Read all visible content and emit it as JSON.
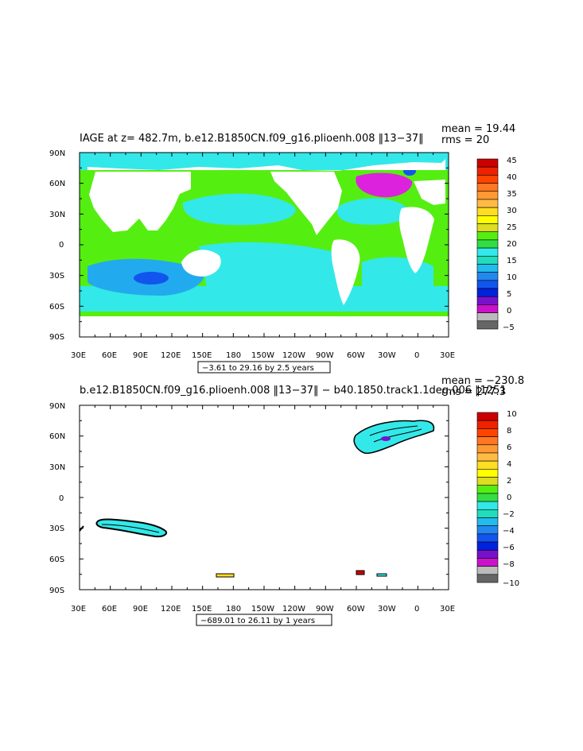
{
  "panels": [
    {
      "title": "IAGE at z= 482.7m, b.e12.B1850CN.f09_g16.plioenh.008 ‖13−37‖",
      "mean_text": "mean = 19.44",
      "rms_text": "rms = 20",
      "range_text": "−3.61 to 29.16 by 2.5 years",
      "lat_ticks": [
        "90N",
        "60N",
        "30N",
        "0",
        "30S",
        "60S",
        "90S"
      ],
      "lon_ticks": [
        "30E",
        "60E",
        "90E",
        "120E",
        "150E",
        "180",
        "150W",
        "120W",
        "90W",
        "60W",
        "30W",
        "0",
        "30E"
      ],
      "colorbar_labels": [
        "45",
        "40",
        "35",
        "30",
        "25",
        "20",
        "15",
        "10",
        "5",
        "0",
        "−5"
      ]
    },
    {
      "title": "b.e12.B1850CN.f09_g16.plioenh.008 ‖13−37‖ − b40.1850.track1.1deg.006 ‖1251",
      "mean_text": "mean = −230.8",
      "rms_text": "rms = 277.3",
      "range_text": "−689.01 to 26.11 by 1 years",
      "lat_ticks": [
        "90N",
        "60N",
        "30N",
        "0",
        "30S",
        "60S",
        "90S"
      ],
      "lon_ticks": [
        "30E",
        "60E",
        "90E",
        "120E",
        "150E",
        "180",
        "150W",
        "120W",
        "90W",
        "60W",
        "30W",
        "0",
        "30E"
      ],
      "colorbar_labels": [
        "10",
        "8",
        "6",
        "4",
        "2",
        "0",
        "−2",
        "−4",
        "−6",
        "−8",
        "−10"
      ]
    }
  ],
  "colors": {
    "ocean_cyan": "#33e8e8",
    "ocean_green": "#55ee11",
    "ocean_light_blue": "#22aaee",
    "ocean_blue": "#1155ee",
    "ocean_magenta": "#dd22dd",
    "land": "#ffffff"
  },
  "colorbar_colors": [
    "#cc0000",
    "#ee2200",
    "#ff4400",
    "#ff7722",
    "#ff9933",
    "#ffbb44",
    "#ffdd22",
    "#ffff00",
    "#dddd22",
    "#55ee11",
    "#33dd44",
    "#33e8e8",
    "#22ddbb",
    "#22bbee",
    "#2288ee",
    "#1155ee",
    "#0022dd",
    "#7711cc",
    "#cc11cc",
    "#bbbbbb",
    "#666666"
  ],
  "chart_data": [
    {
      "type": "heatmap",
      "title": "IAGE at z= 482.7m, b.e12.B1850CN.f09_g16.plioenh.008 ‖13−37‖",
      "xlabel": "",
      "ylabel": "",
      "x_ticks": [
        "30E",
        "60E",
        "90E",
        "120E",
        "150E",
        "180",
        "150W",
        "120W",
        "90W",
        "60W",
        "30W",
        "0",
        "30E"
      ],
      "y_ticks": [
        "90N",
        "60N",
        "30N",
        "0",
        "30S",
        "60S",
        "90S"
      ],
      "colorbar": {
        "min": -5,
        "max": 45,
        "step": 2.5,
        "labels": [
          -5,
          0,
          5,
          10,
          15,
          20,
          25,
          30,
          35,
          40,
          45
        ]
      },
      "data_range": [
        -3.61,
        29.16
      ],
      "contour_interval": 2.5,
      "units": "years",
      "mean": 19.44,
      "rms": 20
    },
    {
      "type": "heatmap",
      "title": "b.e12.B1850CN.f09_g16.plioenh.008 ‖13−37‖ − b40.1850.track1.1deg.006 ‖1251",
      "xlabel": "",
      "ylabel": "",
      "x_ticks": [
        "30E",
        "60E",
        "90E",
        "120E",
        "150E",
        "180",
        "150W",
        "120W",
        "90W",
        "60W",
        "30W",
        "0",
        "30E"
      ],
      "y_ticks": [
        "90N",
        "60N",
        "30N",
        "0",
        "30S",
        "60S",
        "90S"
      ],
      "colorbar": {
        "min": -10,
        "max": 10,
        "step": 1,
        "labels": [
          -10,
          -8,
          -6,
          -4,
          -2,
          0,
          2,
          4,
          6,
          8,
          10
        ]
      },
      "data_range": [
        -689.01,
        26.11
      ],
      "contour_interval": 1,
      "units": "years",
      "mean": -230.8,
      "rms": 277.3
    }
  ]
}
